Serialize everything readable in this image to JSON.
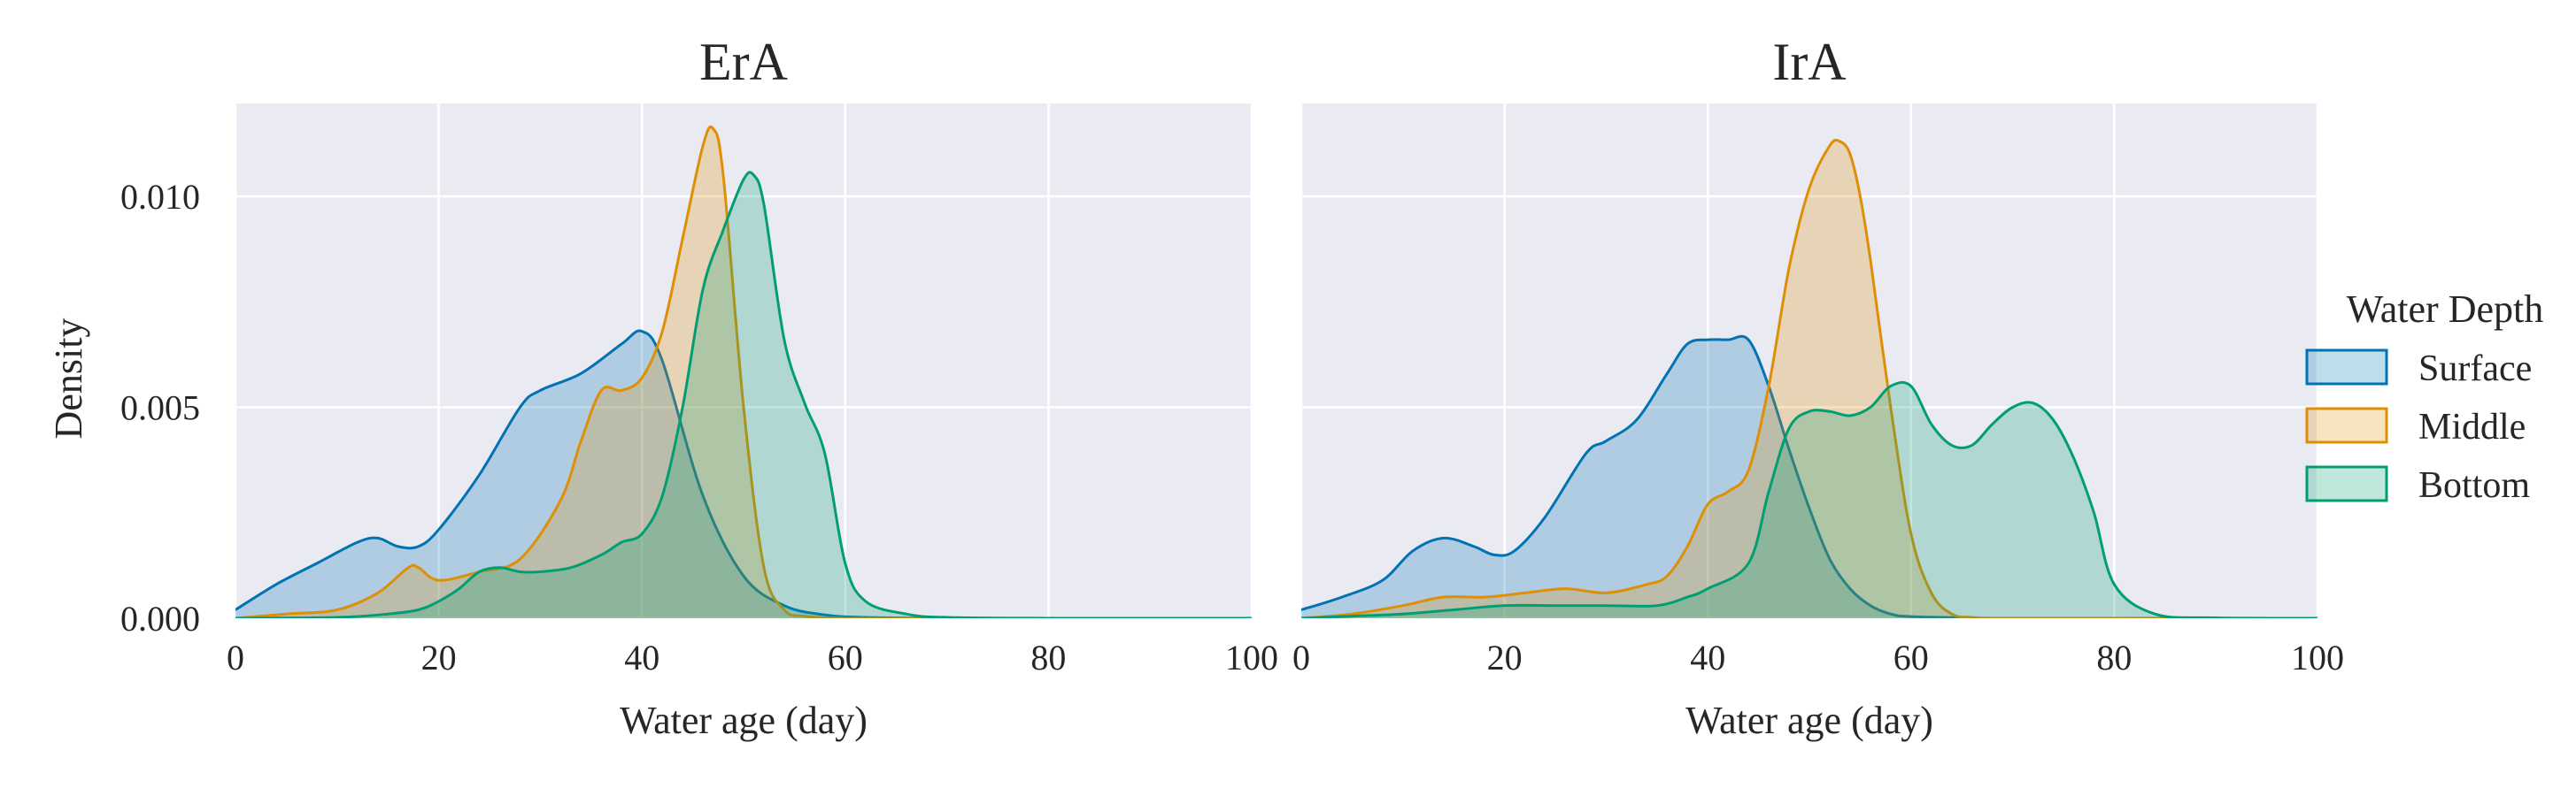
{
  "chart_data": [
    {
      "type": "area",
      "title": "ErA",
      "xlabel": "Water age (day)",
      "ylabel": "Density",
      "xlim": [
        0,
        100
      ],
      "ylim": [
        0,
        0.0122
      ],
      "xticks": [
        0,
        20,
        40,
        60,
        80,
        100
      ],
      "xtick_labels": [
        "0",
        "20",
        "40",
        "60",
        "80",
        "100"
      ],
      "yticks": [
        0,
        0.005,
        0.01
      ],
      "ytick_labels": [
        "0.000",
        "0.005",
        "0.010"
      ],
      "grid": true,
      "series": [
        {
          "name": "Surface",
          "x": [
            0,
            4,
            8,
            12,
            14,
            16,
            18,
            20,
            24,
            28,
            30,
            34,
            38,
            40,
            42,
            46,
            50,
            54,
            58,
            62,
            70,
            80,
            100
          ],
          "y": [
            0.0002,
            0.0008,
            0.0013,
            0.0018,
            0.0019,
            0.0017,
            0.0017,
            0.0021,
            0.0034,
            0.005,
            0.0054,
            0.0058,
            0.0065,
            0.0068,
            0.0061,
            0.0029,
            0.001,
            0.0003,
            8e-05,
            2e-05,
            0,
            0,
            0
          ]
        },
        {
          "name": "Middle",
          "x": [
            0,
            5,
            10,
            14,
            17,
            18,
            20,
            24,
            28,
            32,
            34,
            36,
            38,
            40,
            42,
            44,
            46,
            47,
            48,
            50,
            52,
            54,
            56,
            60,
            70,
            100
          ],
          "y": [
            0,
            0.0001,
            0.0002,
            0.0006,
            0.0012,
            0.0012,
            0.0009,
            0.0011,
            0.0014,
            0.0028,
            0.0042,
            0.0054,
            0.0054,
            0.0057,
            0.0068,
            0.009,
            0.0112,
            0.0116,
            0.0105,
            0.005,
            0.0012,
            0.0002,
            5e-05,
            0,
            0,
            0
          ]
        },
        {
          "name": "Bottom",
          "x": [
            0,
            10,
            15,
            18,
            20,
            22,
            24,
            26,
            28,
            30,
            33,
            36,
            38,
            40,
            42,
            44,
            46,
            48,
            50,
            51,
            52,
            54,
            56,
            58,
            60,
            62,
            66,
            70,
            80,
            100
          ],
          "y": [
            0,
            2e-05,
            0.0001,
            0.0002,
            0.0004,
            0.0007,
            0.0011,
            0.0012,
            0.0011,
            0.0011,
            0.0012,
            0.0015,
            0.0018,
            0.002,
            0.0029,
            0.005,
            0.0078,
            0.0092,
            0.0104,
            0.0105,
            0.0098,
            0.0066,
            0.0051,
            0.0039,
            0.0013,
            0.0004,
            0.0001,
            2e-05,
            0,
            0
          ]
        }
      ]
    },
    {
      "type": "area",
      "title": "IrA",
      "xlabel": "Water age (day)",
      "ylabel": "",
      "xlim": [
        0,
        100
      ],
      "ylim": [
        0,
        0.0122
      ],
      "xticks": [
        0,
        20,
        40,
        60,
        80,
        100
      ],
      "xtick_labels": [
        "0",
        "20",
        "40",
        "60",
        "80",
        "100"
      ],
      "yticks": [
        0,
        0.005,
        0.01
      ],
      "ytick_labels": [
        "",
        "",
        ""
      ],
      "grid": true,
      "series": [
        {
          "name": "Surface",
          "x": [
            0,
            4,
            8,
            11,
            14,
            17,
            19,
            21,
            24,
            28,
            30,
            33,
            36,
            38,
            40,
            42,
            44,
            46,
            48,
            50,
            52,
            54,
            56,
            58,
            60,
            66,
            70,
            100
          ],
          "y": [
            0.0002,
            0.0005,
            0.0009,
            0.0016,
            0.0019,
            0.0017,
            0.0015,
            0.0016,
            0.0024,
            0.0039,
            0.0042,
            0.0047,
            0.0058,
            0.0065,
            0.0066,
            0.0066,
            0.0066,
            0.0055,
            0.004,
            0.0026,
            0.0014,
            0.0007,
            0.0003,
            0.0001,
            4e-05,
            1e-05,
            0,
            0
          ]
        },
        {
          "name": "Middle",
          "x": [
            0,
            5,
            10,
            14,
            18,
            22,
            26,
            30,
            34,
            36,
            38,
            40,
            42,
            44,
            46,
            48,
            50,
            52,
            53,
            54,
            55,
            56,
            58,
            60,
            62,
            64,
            66,
            70,
            100
          ],
          "y": [
            0,
            0.0001,
            0.0003,
            0.0005,
            0.0005,
            0.0006,
            0.0007,
            0.0006,
            0.0008,
            0.001,
            0.0017,
            0.0027,
            0.003,
            0.0035,
            0.0055,
            0.0083,
            0.0102,
            0.0112,
            0.0113,
            0.011,
            0.01,
            0.0085,
            0.005,
            0.002,
            0.0006,
            0.0001,
            2e-05,
            0,
            0
          ]
        },
        {
          "name": "Bottom",
          "x": [
            0,
            5,
            10,
            15,
            20,
            25,
            30,
            35,
            38,
            40,
            44,
            46,
            48,
            50,
            52,
            54,
            56,
            58,
            60,
            62,
            64,
            66,
            68,
            70,
            72,
            74,
            76,
            78,
            80,
            84,
            90,
            100
          ],
          "y": [
            0,
            5e-05,
            0.0001,
            0.0002,
            0.0003,
            0.0003,
            0.0003,
            0.0003,
            0.0005,
            0.0007,
            0.0013,
            0.003,
            0.0045,
            0.0049,
            0.0049,
            0.0048,
            0.005,
            0.0055,
            0.0055,
            0.0046,
            0.0041,
            0.0041,
            0.0046,
            0.005,
            0.0051,
            0.0047,
            0.0038,
            0.0025,
            0.0008,
            0.0001,
            1e-05,
            0
          ]
        }
      ]
    }
  ],
  "legend": {
    "title": "Water Depth",
    "placement": "center-right",
    "items": [
      {
        "label": "Surface",
        "color": "#0173b2"
      },
      {
        "label": "Middle",
        "color": "#de8f05"
      },
      {
        "label": "Bottom",
        "color": "#029e73"
      }
    ]
  },
  "style": {
    "axes_bg": "#eaeaf2",
    "grid_color": "#ffffff",
    "fill_opacity": 0.25,
    "series_colors": [
      "#0173b2",
      "#de8f05",
      "#029e73"
    ]
  }
}
